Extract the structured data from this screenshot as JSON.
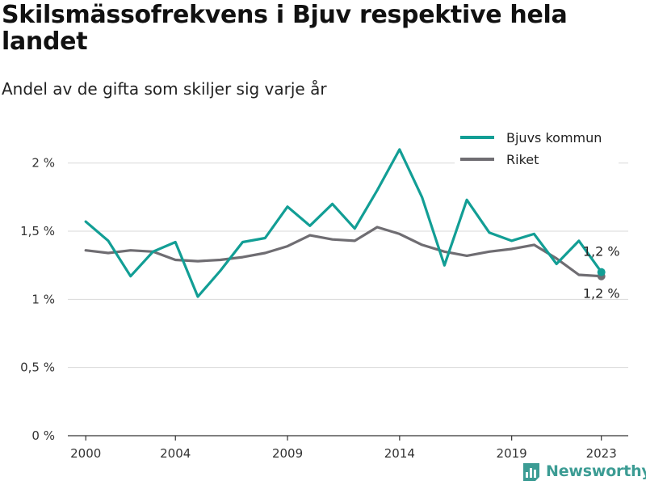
{
  "title": "Skilsmässofrekvens i Bjuv respektive hela landet",
  "subtitle": "Andel av de gifta som skiljer sig varje år",
  "logo_text": "Newsworthy",
  "colors": {
    "bjuv": "#129e95",
    "riket": "#6f6d72",
    "grid": "#d9d9d9",
    "axis": "#333333"
  },
  "chart_data": {
    "type": "line",
    "title": "Skilsmässofrekvens i Bjuv respektive hela landet",
    "subtitle": "Andel av de gifta som skiljer sig varje år",
    "xlabel": "",
    "ylabel": "",
    "x": [
      2000,
      2001,
      2002,
      2003,
      2004,
      2005,
      2006,
      2007,
      2008,
      2009,
      2010,
      2011,
      2012,
      2013,
      2014,
      2015,
      2016,
      2017,
      2018,
      2019,
      2020,
      2021,
      2022,
      2023
    ],
    "xlim": [
      1999.2,
      2024.2
    ],
    "ylim": [
      0,
      2.2
    ],
    "x_ticks": [
      2000,
      2004,
      2009,
      2014,
      2019,
      2023
    ],
    "x_tick_labels": [
      "2000",
      "2004",
      "2009",
      "2014",
      "2019",
      "2023"
    ],
    "y_ticks": [
      0,
      0.5,
      1,
      1.5,
      2
    ],
    "y_tick_labels": [
      "0 %",
      "0,5 %",
      "1 %",
      "1,5 %",
      "2 %"
    ],
    "grid": true,
    "legend_position": "top-right",
    "series": [
      {
        "name": "Bjuvs kommun",
        "color": "#129e95",
        "values": [
          1.57,
          1.43,
          1.17,
          1.35,
          1.42,
          1.02,
          1.21,
          1.42,
          1.45,
          1.68,
          1.54,
          1.7,
          1.52,
          1.8,
          2.1,
          1.75,
          1.25,
          1.73,
          1.49,
          1.43,
          1.48,
          1.26,
          1.43,
          1.2
        ],
        "end_label": "1,2 %"
      },
      {
        "name": "Riket",
        "color": "#6f6d72",
        "values": [
          1.36,
          1.34,
          1.36,
          1.35,
          1.29,
          1.28,
          1.29,
          1.31,
          1.34,
          1.39,
          1.47,
          1.44,
          1.43,
          1.53,
          1.48,
          1.4,
          1.35,
          1.32,
          1.35,
          1.37,
          1.4,
          1.3,
          1.18,
          1.17
        ],
        "end_label": "1,2 %"
      }
    ]
  }
}
